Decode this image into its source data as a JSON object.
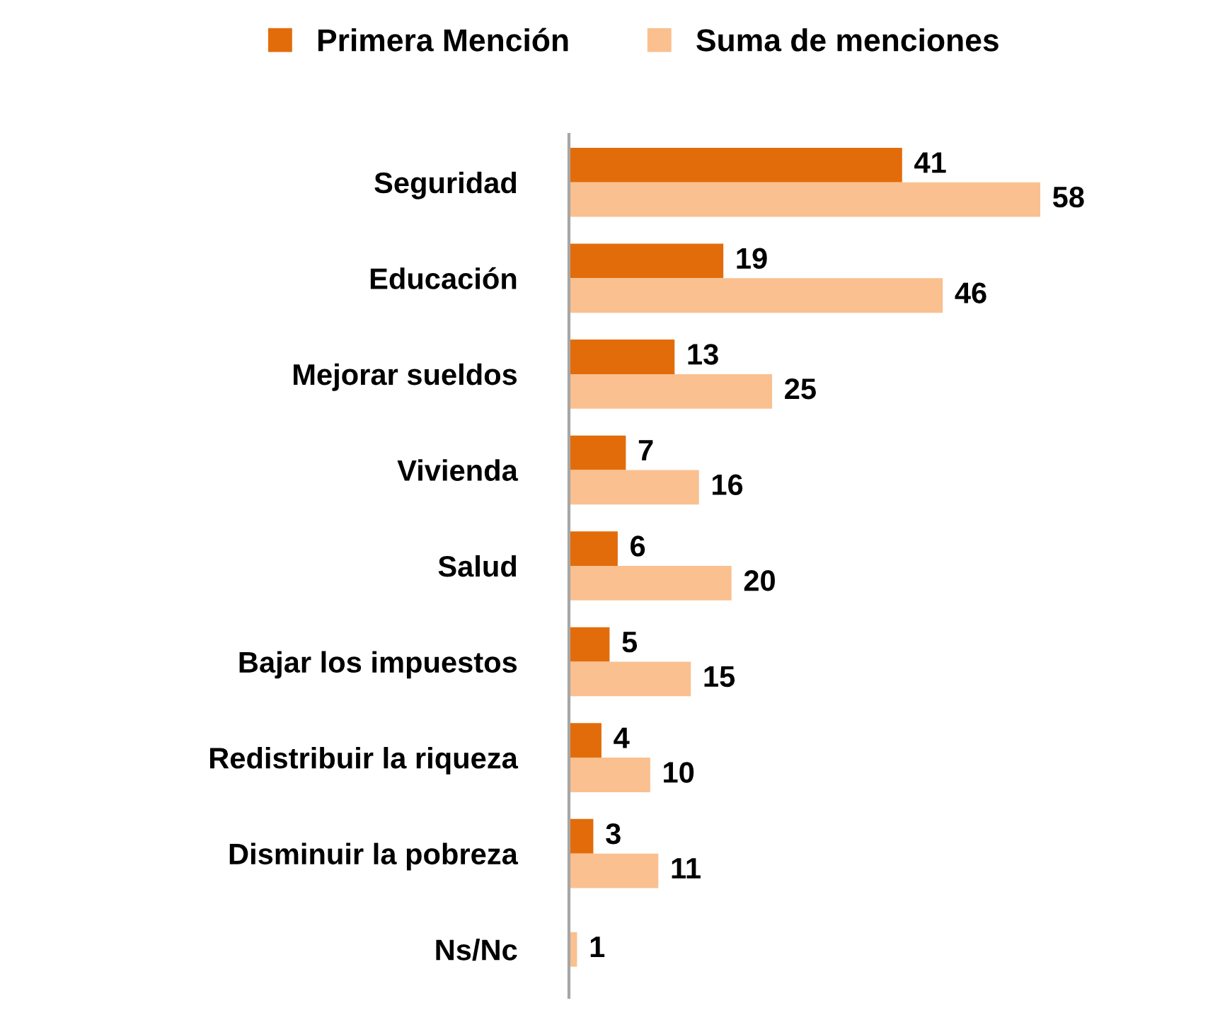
{
  "chart_data": {
    "type": "bar",
    "orientation": "horizontal",
    "categories": [
      "Seguridad",
      "Educación",
      "Mejorar sueldos",
      "Vivienda",
      "Salud",
      "Bajar los impuestos",
      "Redistribuir la riqueza",
      "Disminuir la pobreza",
      "Ns/Nc"
    ],
    "series": [
      {
        "name": "Primera Mención",
        "color": "#e36c0a",
        "values": [
          41,
          19,
          13,
          7,
          6,
          5,
          4,
          3,
          null
        ]
      },
      {
        "name": "Suma de menciones",
        "color": "#fac090",
        "values": [
          58,
          46,
          25,
          16,
          20,
          15,
          10,
          11,
          1
        ]
      }
    ],
    "data_labels": true,
    "legend": "top",
    "grid": false
  }
}
